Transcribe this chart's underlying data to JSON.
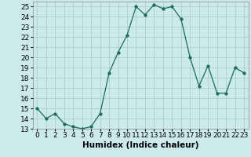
{
  "x": [
    0,
    1,
    2,
    3,
    4,
    5,
    6,
    7,
    8,
    9,
    10,
    11,
    12,
    13,
    14,
    15,
    16,
    17,
    18,
    19,
    20,
    21,
    22,
    23
  ],
  "y": [
    15.0,
    14.0,
    14.5,
    13.5,
    13.2,
    13.0,
    13.2,
    14.5,
    18.5,
    20.5,
    22.2,
    25.0,
    24.2,
    25.2,
    24.8,
    25.0,
    23.8,
    20.0,
    17.2,
    19.2,
    16.5,
    16.5,
    19.0,
    18.5
  ],
  "xlabel": "Humidex (Indice chaleur)",
  "line_color": "#1a6b5a",
  "marker": "o",
  "marker_size": 2.5,
  "bg_color": "#cceaea",
  "grid_color": "#aacece",
  "ylim": [
    13,
    25.5
  ],
  "xlim": [
    -0.5,
    23.5
  ],
  "yticks": [
    13,
    14,
    15,
    16,
    17,
    18,
    19,
    20,
    21,
    22,
    23,
    24,
    25
  ],
  "xticks": [
    0,
    1,
    2,
    3,
    4,
    5,
    6,
    7,
    8,
    9,
    10,
    11,
    12,
    13,
    14,
    15,
    16,
    17,
    18,
    19,
    20,
    21,
    22,
    23
  ],
  "xlabel_fontsize": 7.5,
  "tick_fontsize": 6.5
}
